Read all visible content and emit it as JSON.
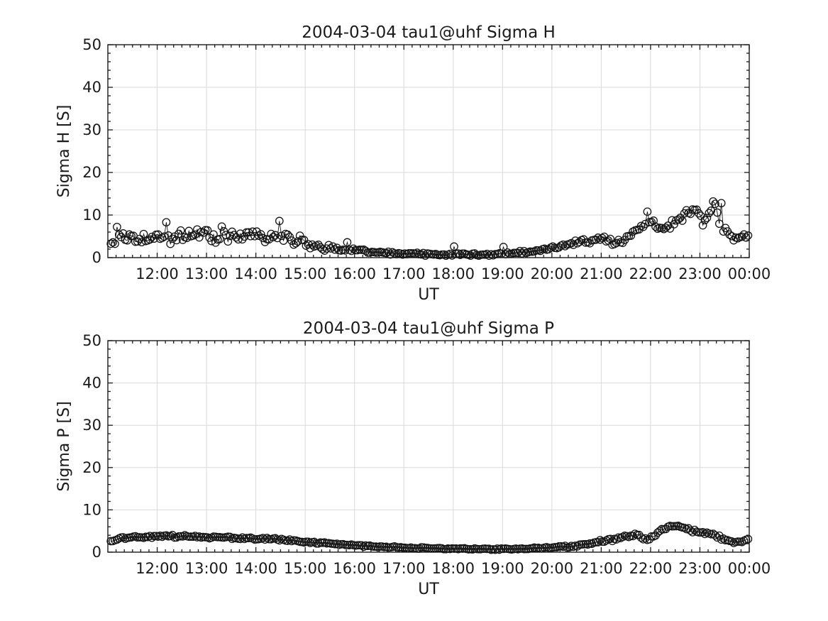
{
  "figure": {
    "background": "#ffffff"
  },
  "chart_data": [
    {
      "type": "scatter",
      "title": "2004-03-04  tau1@uhf Sigma H",
      "xlabel": "UT",
      "ylabel": "Sigma H [S]",
      "xlim_hours": [
        11,
        24
      ],
      "ylim": [
        0,
        50
      ],
      "x_tick_hours": [
        12,
        13,
        14,
        15,
        16,
        17,
        18,
        19,
        20,
        21,
        22,
        23,
        24
      ],
      "x_tick_labels": [
        "12:00",
        "13:00",
        "14:00",
        "15:00",
        "16:00",
        "17:00",
        "18:00",
        "19:00",
        "20:00",
        "21:00",
        "22:00",
        "23:00",
        "00:00"
      ],
      "y_tick_values": [
        0,
        10,
        20,
        30,
        40,
        50
      ],
      "y_tick_labels": [
        "0",
        "10",
        "20",
        "30",
        "40",
        "50"
      ],
      "x_minor_step_minutes": 10,
      "y_minor_step": 2,
      "grid": true,
      "marker": {
        "shape": "open-circle",
        "radius_px": 5.2,
        "color": "#141414"
      },
      "line_color": "#141414",
      "grid_color": "#d9d9d9",
      "axis_color": "#1a1a1a",
      "sample_step_minutes": 2.5,
      "start_hour": 11.06,
      "end_hour": 24.0,
      "seed": 12345,
      "trend": [
        [
          11.07,
          2.8
        ],
        [
          11.2,
          4.0
        ],
        [
          11.35,
          4.4
        ],
        [
          11.5,
          4.4
        ],
        [
          11.7,
          4.7
        ],
        [
          11.9,
          4.4
        ],
        [
          12.1,
          5.0
        ],
        [
          12.3,
          4.5
        ],
        [
          12.5,
          5.3
        ],
        [
          12.7,
          5.0
        ],
        [
          12.9,
          5.6
        ],
        [
          13.1,
          4.7
        ],
        [
          13.3,
          4.9
        ],
        [
          13.5,
          5.1
        ],
        [
          13.7,
          5.3
        ],
        [
          13.9,
          4.8
        ],
        [
          14.1,
          5.1
        ],
        [
          14.3,
          4.7
        ],
        [
          14.5,
          5.0
        ],
        [
          14.7,
          4.2
        ],
        [
          14.9,
          3.8
        ],
        [
          15.1,
          3.2
        ],
        [
          15.3,
          2.7
        ],
        [
          15.5,
          2.3
        ],
        [
          15.7,
          2.1
        ],
        [
          15.9,
          1.9
        ],
        [
          16.1,
          1.7
        ],
        [
          16.3,
          1.4
        ],
        [
          16.5,
          1.2
        ],
        [
          16.7,
          1.0
        ],
        [
          17.0,
          0.9
        ],
        [
          17.5,
          0.8
        ],
        [
          18.0,
          0.7
        ],
        [
          18.5,
          0.7
        ],
        [
          19.0,
          0.9
        ],
        [
          19.5,
          1.3
        ],
        [
          20.0,
          2.2
        ],
        [
          20.5,
          3.3
        ],
        [
          21.0,
          4.6
        ],
        [
          21.15,
          3.6
        ],
        [
          21.3,
          2.9
        ],
        [
          21.45,
          4.0
        ],
        [
          21.6,
          5.2
        ],
        [
          21.75,
          6.5
        ],
        [
          21.9,
          8.8
        ],
        [
          22.0,
          9.3
        ],
        [
          22.1,
          7.0
        ],
        [
          22.2,
          6.2
        ],
        [
          22.3,
          6.8
        ],
        [
          22.45,
          8.2
        ],
        [
          22.6,
          9.2
        ],
        [
          22.75,
          10.4
        ],
        [
          22.9,
          11.2
        ],
        [
          23.0,
          10.0
        ],
        [
          23.1,
          7.8
        ],
        [
          23.2,
          10.5
        ],
        [
          23.3,
          12.0
        ],
        [
          23.4,
          9.0
        ],
        [
          23.5,
          6.5
        ],
        [
          23.6,
          4.8
        ],
        [
          23.7,
          4.4
        ],
        [
          23.8,
          4.7
        ],
        [
          23.9,
          5.2
        ],
        [
          24.0,
          5.6
        ]
      ],
      "noise_amplitude": [
        [
          11,
          0.9
        ],
        [
          14.8,
          0.85
        ],
        [
          15.5,
          0.5
        ],
        [
          16.2,
          0.3
        ],
        [
          17,
          0.22
        ],
        [
          19,
          0.22
        ],
        [
          19.8,
          0.3
        ],
        [
          20.5,
          0.5
        ],
        [
          21,
          0.6
        ],
        [
          21.8,
          0.7
        ],
        [
          22.5,
          0.8
        ],
        [
          23.3,
          0.9
        ],
        [
          23.6,
          0.6
        ],
        [
          24,
          0.5
        ]
      ],
      "spikes": [
        [
          11.2,
          7.2
        ],
        [
          12.2,
          8.3
        ],
        [
          13.33,
          7.3
        ],
        [
          14.48,
          8.6
        ],
        [
          15.86,
          3.6
        ],
        [
          18.0,
          2.6
        ],
        [
          19.0,
          2.5
        ],
        [
          21.95,
          10.8
        ],
        [
          23.25,
          13.2
        ],
        [
          23.42,
          12.8
        ]
      ]
    },
    {
      "type": "scatter",
      "title": "2004-03-04  tau1@uhf Sigma P",
      "xlabel": "UT",
      "ylabel": "Sigma P [S]",
      "xlim_hours": [
        11,
        24
      ],
      "ylim": [
        0,
        50
      ],
      "x_tick_hours": [
        12,
        13,
        14,
        15,
        16,
        17,
        18,
        19,
        20,
        21,
        22,
        23,
        24
      ],
      "x_tick_labels": [
        "12:00",
        "13:00",
        "14:00",
        "15:00",
        "16:00",
        "17:00",
        "18:00",
        "19:00",
        "20:00",
        "21:00",
        "22:00",
        "23:00",
        "00:00"
      ],
      "y_tick_values": [
        0,
        10,
        20,
        30,
        40,
        50
      ],
      "y_tick_labels": [
        "0",
        "10",
        "20",
        "30",
        "40",
        "50"
      ],
      "x_minor_step_minutes": 10,
      "y_minor_step": 2,
      "grid": true,
      "marker": {
        "shape": "open-circle",
        "radius_px": 5.2,
        "color": "#141414"
      },
      "line_color": "#141414",
      "grid_color": "#d9d9d9",
      "axis_color": "#1a1a1a",
      "sample_step_minutes": 2.5,
      "start_hour": 11.06,
      "end_hour": 24.0,
      "seed": 67890,
      "trend": [
        [
          11.07,
          2.6
        ],
        [
          11.2,
          3.1
        ],
        [
          11.4,
          3.4
        ],
        [
          11.7,
          3.6
        ],
        [
          12.0,
          3.8
        ],
        [
          12.3,
          3.8
        ],
        [
          12.7,
          3.7
        ],
        [
          13.0,
          3.6
        ],
        [
          13.3,
          3.5
        ],
        [
          13.7,
          3.3
        ],
        [
          14.0,
          3.2
        ],
        [
          14.3,
          3.1
        ],
        [
          14.7,
          2.8
        ],
        [
          15.0,
          2.5
        ],
        [
          15.3,
          2.2
        ],
        [
          15.7,
          1.9
        ],
        [
          16.0,
          1.6
        ],
        [
          16.3,
          1.4
        ],
        [
          16.7,
          1.2
        ],
        [
          17.0,
          1.1
        ],
        [
          17.5,
          0.9
        ],
        [
          18.0,
          0.8
        ],
        [
          18.5,
          0.7
        ],
        [
          19.0,
          0.7
        ],
        [
          19.5,
          0.85
        ],
        [
          20.0,
          1.1
        ],
        [
          20.3,
          1.3
        ],
        [
          20.7,
          1.8
        ],
        [
          21.0,
          2.6
        ],
        [
          21.2,
          3.0
        ],
        [
          21.4,
          3.4
        ],
        [
          21.55,
          3.9
        ],
        [
          21.7,
          4.3
        ],
        [
          21.85,
          3.2
        ],
        [
          21.95,
          2.8
        ],
        [
          22.1,
          4.0
        ],
        [
          22.25,
          5.6
        ],
        [
          22.4,
          6.2
        ],
        [
          22.55,
          6.3
        ],
        [
          22.7,
          5.7
        ],
        [
          22.85,
          5.0
        ],
        [
          23.0,
          4.4
        ],
        [
          23.1,
          4.7
        ],
        [
          23.25,
          4.2
        ],
        [
          23.4,
          3.6
        ],
        [
          23.55,
          2.8
        ],
        [
          23.7,
          2.5
        ],
        [
          23.85,
          2.6
        ],
        [
          24.0,
          3.0
        ]
      ],
      "noise_amplitude": [
        [
          11,
          0.22
        ],
        [
          14,
          0.18
        ],
        [
          16,
          0.13
        ],
        [
          19,
          0.12
        ],
        [
          20,
          0.15
        ],
        [
          21,
          0.25
        ],
        [
          22,
          0.3
        ],
        [
          22.5,
          0.3
        ],
        [
          23,
          0.3
        ],
        [
          23.5,
          0.25
        ],
        [
          24,
          0.2
        ]
      ],
      "spikes": []
    }
  ]
}
